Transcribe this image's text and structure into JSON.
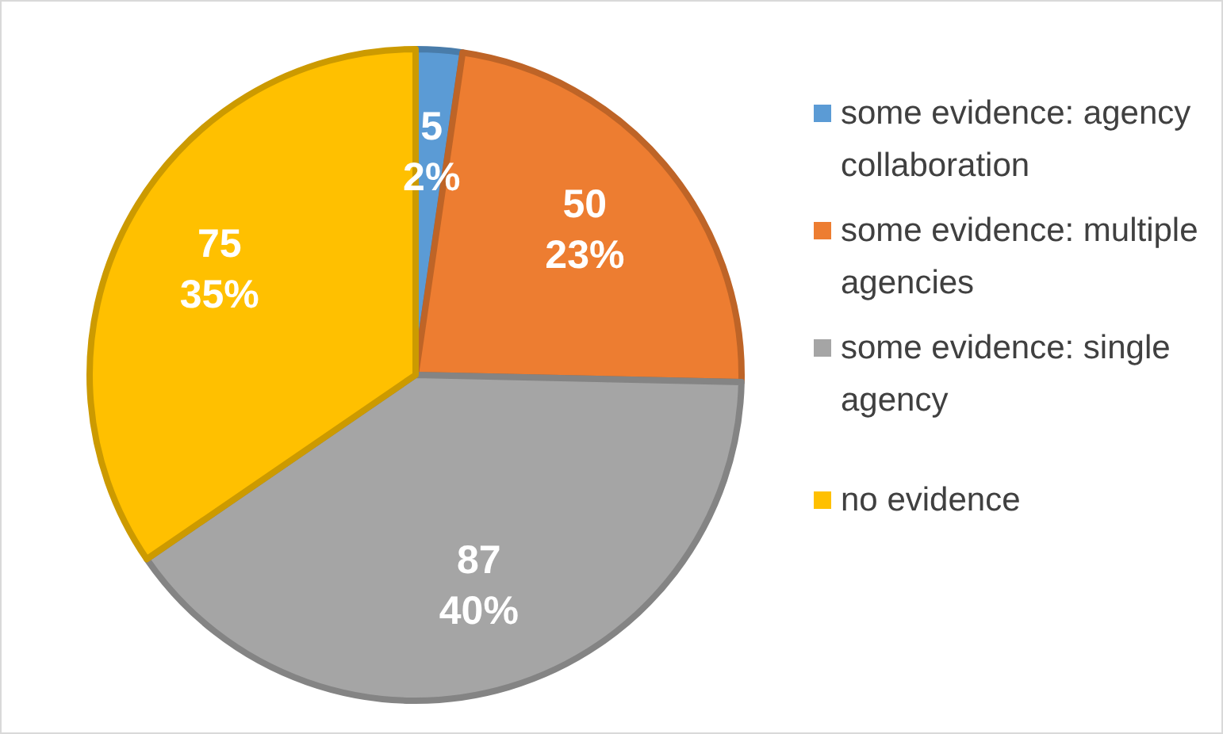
{
  "chart_data": {
    "type": "pie",
    "categories": [
      "some evidence: agency collaboration",
      "some evidence: multiple agencies",
      "some evidence: single agency",
      "no evidence"
    ],
    "values": [
      5,
      50,
      87,
      75
    ],
    "colors": [
      "#5b9bd5",
      "#ed7d31",
      "#a5a5a5",
      "#ffc000"
    ],
    "value_labels": [
      "5\n2%",
      "50\n23%",
      "87\n40%",
      "75\n35%"
    ],
    "legend": "right"
  }
}
